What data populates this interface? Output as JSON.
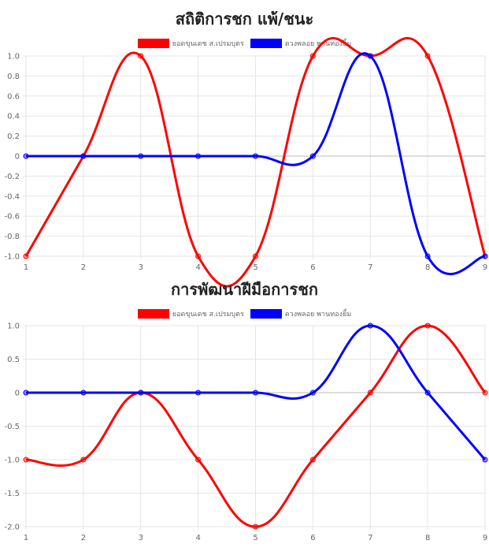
{
  "chart_data": [
    {
      "type": "line",
      "title": "สถิติการชก แพ้/ชนะ",
      "x": [
        1,
        2,
        3,
        4,
        5,
        6,
        7,
        8,
        9
      ],
      "ylim": [
        -1.0,
        1.0
      ],
      "yticks": [
        "1.0",
        "0.8",
        "0.6",
        "0.4",
        "0.2",
        "0",
        "-0.2",
        "-0.4",
        "-0.6",
        "-0.8",
        "-1.0"
      ],
      "grid": true,
      "legend": "top-center",
      "series": [
        {
          "name": "ยอดขุนเดช ส.เปรมบุตร",
          "color": "#ff0000",
          "values": [
            -1,
            0,
            1,
            -1,
            -1,
            1,
            1,
            1,
            -1
          ]
        },
        {
          "name": "ดวงพลอย พานทองยิ้ม",
          "color": "#0000ff",
          "values": [
            0,
            0,
            0,
            0,
            0,
            0,
            1,
            -1,
            -1
          ]
        }
      ]
    },
    {
      "type": "line",
      "title": "การพัฒนาฝีมือการชก",
      "x": [
        1,
        2,
        3,
        4,
        5,
        6,
        7,
        8,
        9
      ],
      "ylim": [
        -2.0,
        1.0
      ],
      "yticks": [
        "1.0",
        "0.5",
        "0",
        "-0.5",
        "-1.0",
        "-1.5",
        "-2.0"
      ],
      "grid": true,
      "legend": "top-center",
      "series": [
        {
          "name": "ยอดขุนเดช ส.เปรมบุตร",
          "color": "#ff0000",
          "values": [
            -1,
            -1,
            0,
            -1,
            -2,
            -1,
            0,
            1,
            0
          ]
        },
        {
          "name": "ดวงพลอย พานทองยิ้ม",
          "color": "#0000ff",
          "values": [
            0,
            0,
            0,
            0,
            0,
            0,
            1,
            0,
            -1
          ]
        }
      ]
    }
  ]
}
